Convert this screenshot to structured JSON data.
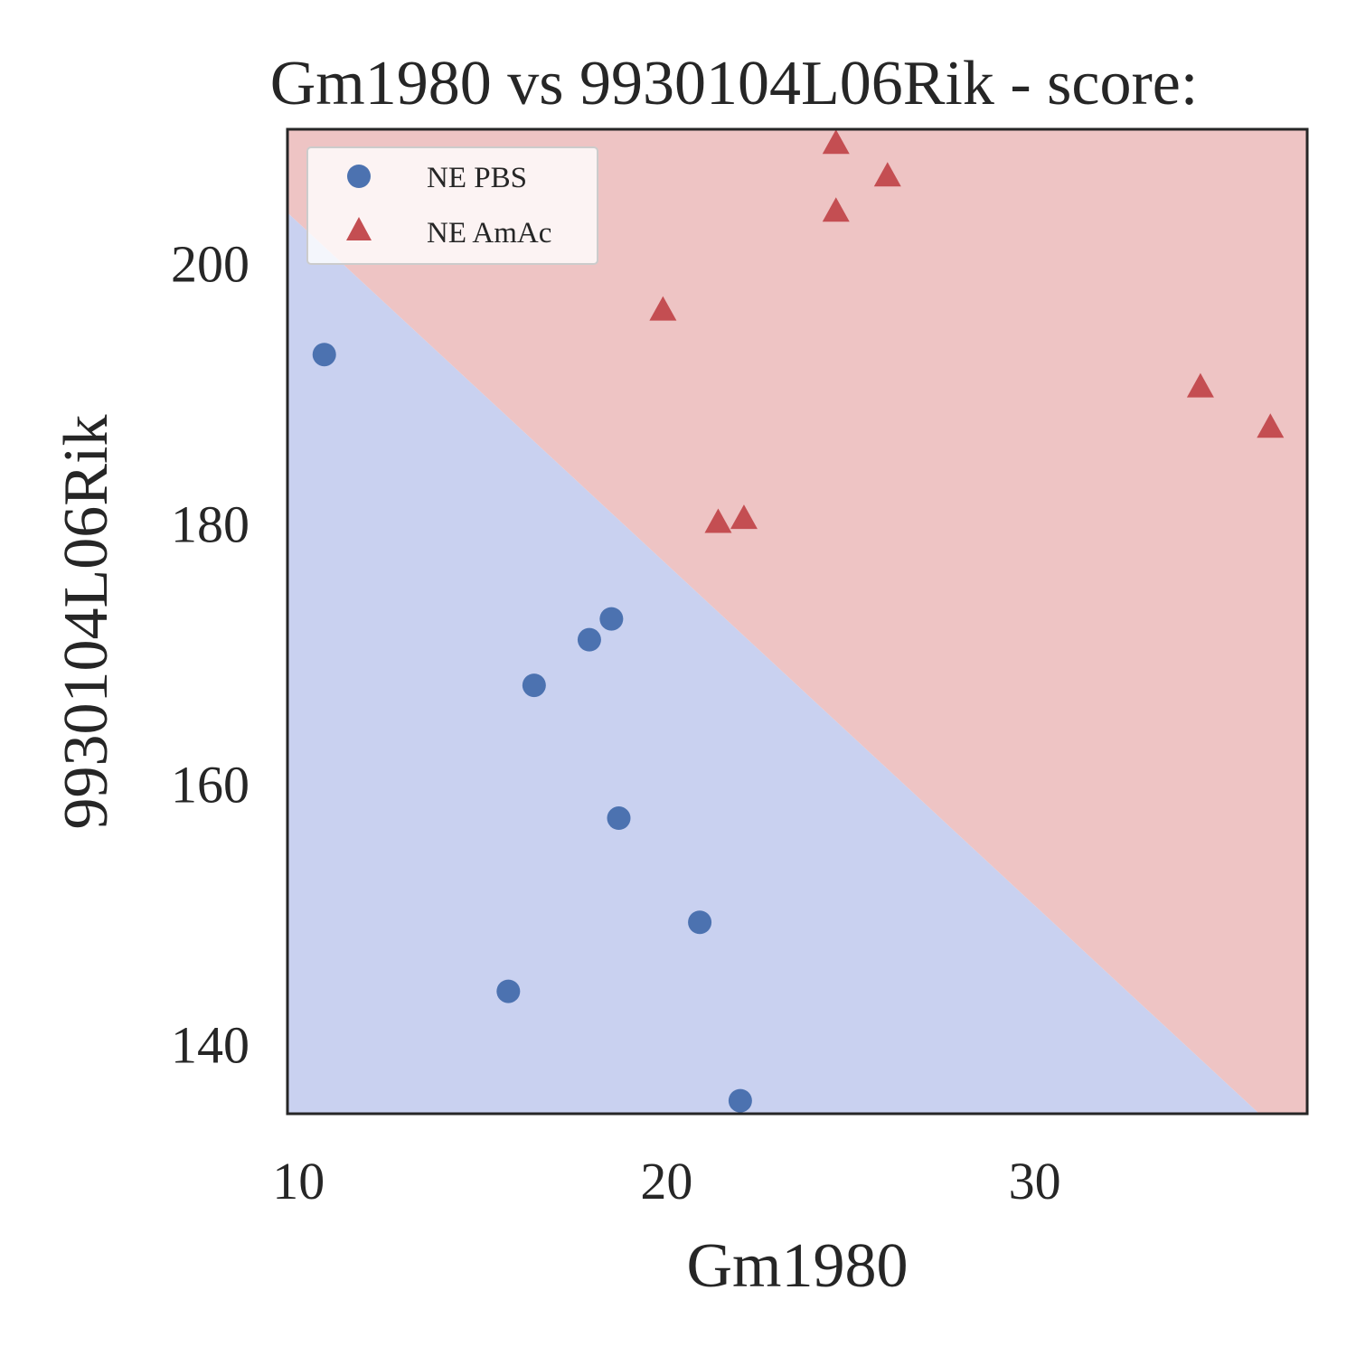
{
  "chart_data": {
    "type": "scatter",
    "title": "Gm1980 vs 9930104L06Rik - score:",
    "xlabel": "Gm1980",
    "ylabel": "9930104L06Rik",
    "xlim": [
      9.7,
      37.4
    ],
    "ylim": [
      134.7,
      210.3
    ],
    "xticks": [
      10,
      20,
      30
    ],
    "yticks": [
      140,
      160,
      180,
      200
    ],
    "grid": false,
    "legend_position": "top-left",
    "decision_regions": {
      "boundary": [
        [
          9.7,
          203.9
        ],
        [
          36.1,
          134.7
        ]
      ],
      "above_class": "NE AmAc",
      "below_class": "NE PBS",
      "above_color": "#eec4c4",
      "below_color": "#c9d1f0"
    },
    "series": [
      {
        "name": "NE PBS",
        "marker": "circle",
        "color": "#4c72b0",
        "points": [
          [
            10.7,
            193.0
          ],
          [
            15.7,
            144.1
          ],
          [
            16.4,
            167.6
          ],
          [
            17.9,
            171.1
          ],
          [
            18.5,
            172.7
          ],
          [
            18.7,
            157.4
          ],
          [
            20.9,
            149.4
          ],
          [
            22.0,
            135.7
          ]
        ]
      },
      {
        "name": "NE AmAc",
        "marker": "triangle",
        "color": "#c44e52",
        "points": [
          [
            24.6,
            209.1
          ],
          [
            26.0,
            206.6
          ],
          [
            24.6,
            203.9
          ],
          [
            19.9,
            196.3
          ],
          [
            34.5,
            190.4
          ],
          [
            36.4,
            187.3
          ],
          [
            21.4,
            180.0
          ],
          [
            22.1,
            180.3
          ]
        ]
      }
    ]
  }
}
